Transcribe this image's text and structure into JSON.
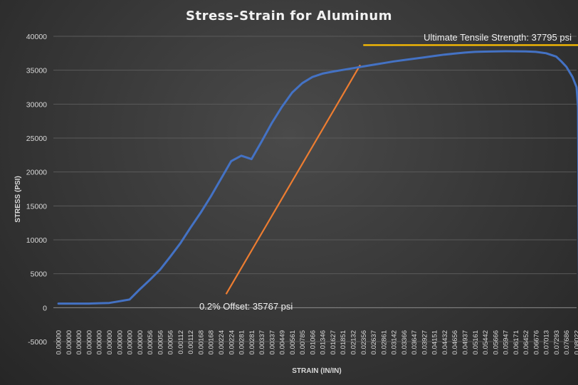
{
  "chart_data": {
    "type": "line",
    "title": "Stress-Strain for Aluminum",
    "xlabel": "STRAIN (IN/IN)",
    "ylabel": "STRESS (PSI)",
    "ylim": [
      -5000,
      40000
    ],
    "y_ticks": [
      40000,
      35000,
      30000,
      25000,
      20000,
      15000,
      10000,
      5000,
      0,
      -5000
    ],
    "grid": true,
    "x_tick_labels": [
      "0.00000",
      "0.00000",
      "0.00000",
      "0.00000",
      "0.00000",
      "0.00000",
      "0.00000",
      "0.00000",
      "0.00000",
      "0.00056",
      "0.00056",
      "0.00056",
      "0.00112",
      "0.00112",
      "0.00168",
      "0.00168",
      "0.00224",
      "0.00224",
      "0.00281",
      "0.00281",
      "0.00337",
      "0.00337",
      "0.00449",
      "0.00561",
      "0.00785",
      "0.01066",
      "0.01346",
      "0.01627",
      "0.01851",
      "0.02132",
      "0.02356",
      "0.02637",
      "0.02861",
      "0.03142",
      "0.03366",
      "0.03647",
      "0.03927",
      "0.04151",
      "0.04432",
      "0.04656",
      "0.04937",
      "0.05161",
      "0.05442",
      "0.05666",
      "0.05947",
      "0.06171",
      "0.06452",
      "0.06676",
      "0.07013",
      "0.07293",
      "0.07686",
      "0.08022"
    ],
    "series": [
      {
        "color": "#4472c4",
        "x_index": [
          0,
          1,
          2,
          3,
          4,
          5,
          6,
          7,
          8,
          9,
          10,
          11,
          12,
          13,
          14,
          15,
          16,
          17,
          18,
          19,
          20,
          21,
          22,
          23,
          24,
          25,
          26,
          27,
          28,
          29,
          30,
          31,
          32,
          33,
          34,
          35,
          36,
          37,
          38,
          39,
          40,
          41,
          42,
          43,
          44,
          45,
          46,
          47,
          48,
          49,
          49.5,
          50,
          50.6,
          51,
          51.15,
          51.25
        ],
        "values": [
          600,
          600,
          600,
          600,
          650,
          700,
          950,
          1200,
          2700,
          4100,
          5600,
          7500,
          9500,
          11800,
          14000,
          16400,
          19000,
          21600,
          22400,
          21900,
          24500,
          27200,
          29600,
          31700,
          33100,
          34000,
          34500,
          34800,
          35050,
          35300,
          35550,
          35800,
          36050,
          36300,
          36500,
          36700,
          36900,
          37100,
          37300,
          37450,
          37600,
          37700,
          37750,
          37780,
          37795,
          37790,
          37770,
          37700,
          37500,
          37000,
          36300,
          35500,
          34000,
          32500,
          29500,
          -200
        ]
      }
    ],
    "annotations": [
      {
        "text": "0.2% Offset: 35767 psi",
        "color": "#ed7d31",
        "line_x_index": [
          16.5,
          29.7
        ],
        "line_y": [
          2000,
          35767
        ]
      },
      {
        "text": "Ultimate Tensile Strength: 37795 psi",
        "color": "#ffc000",
        "line_x_index": [
          30,
          57.5
        ],
        "line_y": [
          38700,
          38700
        ]
      }
    ]
  }
}
